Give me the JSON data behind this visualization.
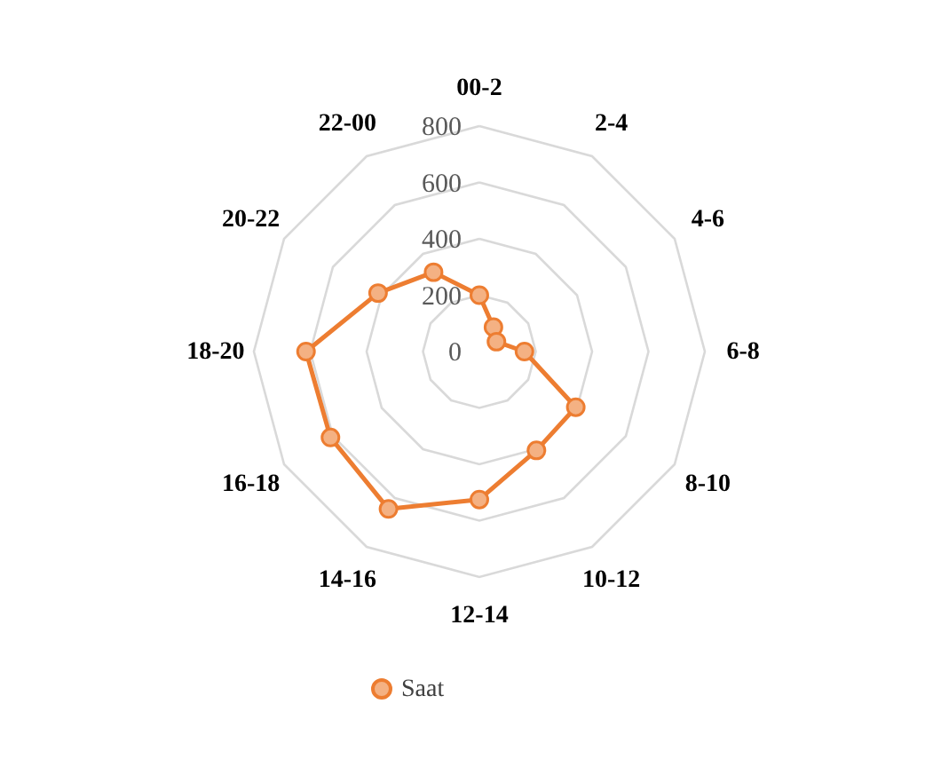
{
  "chart_data": {
    "type": "radar",
    "categories": [
      "00-2",
      "2-4",
      "4-6",
      "6-8",
      "8-10",
      "10-12",
      "12-14",
      "14-16",
      "16-18",
      "18-20",
      "20-22",
      "22-00"
    ],
    "series": [
      {
        "name": "Saat",
        "color": "#ed7d31",
        "values": [
          200,
          100,
          70,
          160,
          395,
          405,
          525,
          645,
          610,
          615,
          415,
          325
        ]
      }
    ],
    "ylim": [
      0,
      800
    ],
    "yticks": [
      0,
      200,
      400,
      600,
      800
    ],
    "grid": true,
    "legend": "bottom",
    "marker": "circle"
  }
}
